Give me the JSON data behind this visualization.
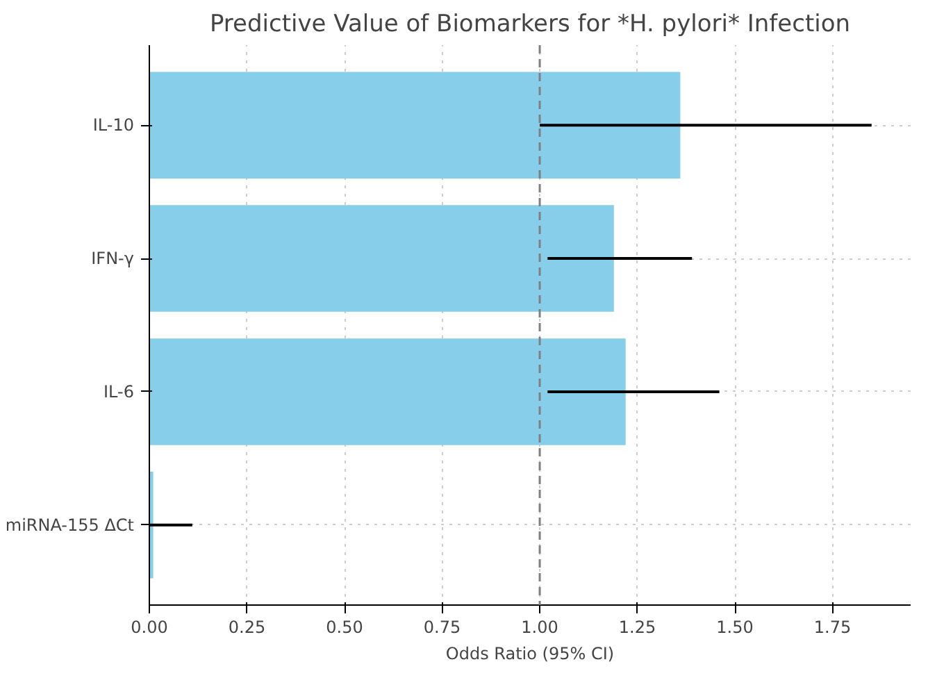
{
  "chart_data": {
    "type": "bar",
    "orientation": "horizontal",
    "title": "Predictive Value of Biomarkers for *H. pylori* Infection",
    "xlabel": "Odds Ratio (95% CI)",
    "categories": [
      "IL-10",
      "IFN-γ",
      "IL-6",
      "miRNA-155 ΔCt"
    ],
    "values": [
      1.36,
      1.19,
      1.22,
      0.01
    ],
    "color": "#87ceeb",
    "errors": [
      [
        1.0,
        1.85
      ],
      [
        1.02,
        1.39
      ],
      [
        1.02,
        1.46
      ],
      [
        0.0,
        0.11
      ]
    ],
    "xlim": [
      0,
      1.95
    ],
    "xticks": [
      {
        "value": 0,
        "label": "0.00"
      },
      {
        "value": 0.25,
        "label": "0.25"
      },
      {
        "value": 0.5,
        "label": "0.50"
      },
      {
        "value": 0.75,
        "label": "0.75"
      },
      {
        "value": 1,
        "label": "1.00"
      },
      {
        "value": 1.25,
        "label": "1.25"
      },
      {
        "value": 1.5,
        "label": "1.50"
      },
      {
        "value": 1.75,
        "label": "1.75"
      }
    ],
    "ref_lines": [
      {
        "axis": "x",
        "value": 1,
        "color": "#808080",
        "line_style": "dashed"
      }
    ],
    "grid": true
  }
}
